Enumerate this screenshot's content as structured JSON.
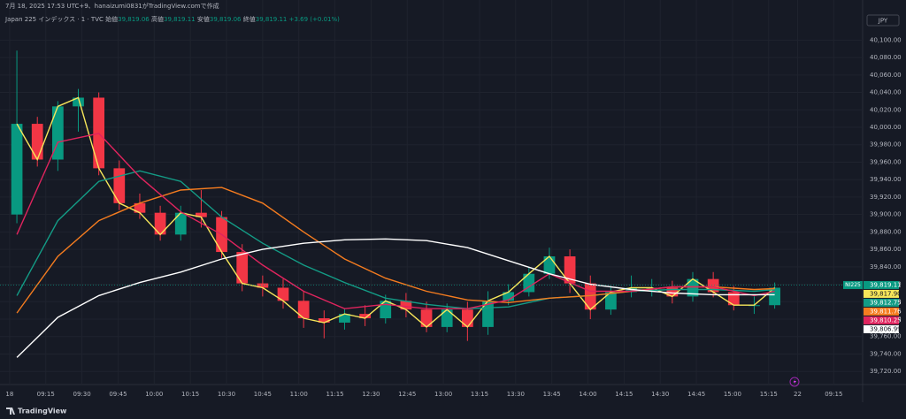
{
  "chart_data": {
    "type": "candlestick",
    "caption": "7月 18, 2025 17:53 UTC+9、hanaizumi0831がTradingView.comで作成",
    "symbol": "Japan 225 インデックス · 1 · TVC",
    "ohlc_legend": [
      {
        "label": "始値",
        "value": "39,819.06"
      },
      {
        "label": "高値",
        "value": "39,819.11"
      },
      {
        "label": "安値",
        "value": "39,819.06"
      },
      {
        "label": "終値",
        "value": "39,819.11"
      }
    ],
    "change": "+3.69 (+0.01%)",
    "currency": "JPY",
    "brand": "TradingView",
    "up_color": "#089981",
    "down_color": "#f23645",
    "grid": true,
    "last_price": {
      "name": "NI225",
      "value": 39819.11,
      "label": "39,819.11",
      "color": "#089981"
    },
    "xlim": [
      -4,
      354
    ],
    "xticks": [
      {
        "value": 0,
        "label": "18"
      },
      {
        "value": 15,
        "label": "09:15"
      },
      {
        "value": 30,
        "label": "09:30"
      },
      {
        "value": 45,
        "label": "09:45"
      },
      {
        "value": 60,
        "label": "10:00"
      },
      {
        "value": 75,
        "label": "10:15"
      },
      {
        "value": 90,
        "label": "10:30"
      },
      {
        "value": 105,
        "label": "10:45"
      },
      {
        "value": 120,
        "label": "11:00"
      },
      {
        "value": 135,
        "label": "11:15"
      },
      {
        "value": 150,
        "label": "12:30"
      },
      {
        "value": 165,
        "label": "12:45"
      },
      {
        "value": 180,
        "label": "13:00"
      },
      {
        "value": 195,
        "label": "13:15"
      },
      {
        "value": 210,
        "label": "13:30"
      },
      {
        "value": 225,
        "label": "13:45"
      },
      {
        "value": 240,
        "label": "14:00"
      },
      {
        "value": 255,
        "label": "14:15"
      },
      {
        "value": 270,
        "label": "14:30"
      },
      {
        "value": 285,
        "label": "14:45"
      },
      {
        "value": 300,
        "label": "15:00"
      },
      {
        "value": 315,
        "label": "15:15"
      },
      {
        "value": 327,
        "label": "22"
      },
      {
        "value": 342,
        "label": "09:15"
      }
    ],
    "ylim": [
      39705,
      40146
    ],
    "yticks": [
      {
        "value": 40100,
        "label": "40,100.00"
      },
      {
        "value": 40080,
        "label": "40,080.00"
      },
      {
        "value": 40060,
        "label": "40,060.00"
      },
      {
        "value": 40040,
        "label": "40,040.00"
      },
      {
        "value": 40020,
        "label": "40,020.00"
      },
      {
        "value": 40000,
        "label": "40,000.00"
      },
      {
        "value": 39980,
        "label": "39,980.00"
      },
      {
        "value": 39960,
        "label": "39,960.00"
      },
      {
        "value": 39940,
        "label": "39,940.00"
      },
      {
        "value": 39920,
        "label": "39,920.00"
      },
      {
        "value": 39900,
        "label": "39,900.00"
      },
      {
        "value": 39880,
        "label": "39,880.00"
      },
      {
        "value": 39860,
        "label": "39,860.00"
      },
      {
        "value": 39840,
        "label": "39,840.00"
      },
      {
        "value": 39820,
        "label": "39,820.00"
      },
      {
        "value": 39800,
        "label": "39,800.00"
      },
      {
        "value": 39780,
        "label": "39,780.00"
      },
      {
        "value": 39760,
        "label": "39,760.00"
      },
      {
        "value": 39740,
        "label": "39,740.00"
      },
      {
        "value": 39720,
        "label": "39,720.00"
      }
    ],
    "candles": {
      "x": [
        3,
        11.5,
        20,
        28.5,
        37,
        45.5,
        54,
        62.5,
        71,
        79.5,
        88,
        96.5,
        105,
        113.5,
        122,
        130.5,
        139,
        147.5,
        156,
        164.5,
        173,
        181.5,
        190,
        198.5,
        207,
        215.5,
        224,
        232.5,
        241,
        249.5,
        258,
        266.5,
        275,
        283.5,
        292,
        300.5,
        309,
        317.5
      ],
      "open": [
        39900,
        40004,
        39963,
        40024,
        40034,
        39953,
        39913,
        39902,
        39877,
        39902,
        39897,
        39857,
        39821,
        39816,
        39801,
        39781,
        39776,
        39786,
        39781,
        39801,
        39791,
        39771,
        39791,
        39771,
        39801,
        39811,
        39832,
        39852,
        39821,
        39791,
        39811,
        39816,
        39816,
        39806,
        39826,
        39811,
        39796,
        39796
      ],
      "high": [
        40088,
        40012,
        40030,
        40044,
        40040,
        39962,
        39924,
        39910,
        39910,
        39928,
        39904,
        39866,
        39830,
        39826,
        39812,
        39790,
        39792,
        39796,
        39808,
        39810,
        39800,
        39798,
        39800,
        39812,
        39820,
        39840,
        39862,
        39860,
        39830,
        39818,
        39830,
        39826,
        39824,
        39834,
        39834,
        39818,
        39806,
        39822
      ],
      "low": [
        39890,
        39955,
        39950,
        39995,
        39945,
        39905,
        39895,
        39870,
        39870,
        39885,
        39850,
        39812,
        39806,
        39792,
        39770,
        39758,
        39768,
        39772,
        39775,
        39782,
        39765,
        39765,
        39755,
        39762,
        39796,
        39806,
        39826,
        39810,
        39780,
        39785,
        39805,
        39806,
        39798,
        39800,
        39805,
        39790,
        39786,
        39792
      ],
      "close": [
        40004,
        39963,
        40024,
        40034,
        39953,
        39913,
        39902,
        39877,
        39902,
        39897,
        39857,
        39821,
        39816,
        39801,
        39781,
        39776,
        39786,
        39781,
        39801,
        39791,
        39771,
        39791,
        39771,
        39801,
        39811,
        39832,
        39852,
        39821,
        39791,
        39811,
        39816,
        39816,
        39806,
        39826,
        39811,
        39796,
        39796,
        39816
      ]
    },
    "series": [
      {
        "color": "#f7e65a",
        "last_label": "39,817.90",
        "x": [
          3,
          11.5,
          20,
          28.5,
          37,
          45.5,
          54,
          62.5,
          71,
          79.5,
          88,
          96.5,
          105,
          113.5,
          122,
          130.5,
          139,
          147.5,
          156,
          164.5,
          173,
          181.5,
          190,
          198.5,
          207,
          215.5,
          224,
          232.5,
          241,
          249.5,
          258,
          266.5,
          275,
          283.5,
          292,
          300.5,
          309,
          317.5
        ],
        "values": [
          40004,
          39963,
          40024,
          40034,
          39953,
          39913,
          39902,
          39877,
          39902,
          39897,
          39857,
          39821,
          39816,
          39801,
          39781,
          39776,
          39786,
          39781,
          39801,
          39791,
          39771,
          39791,
          39771,
          39801,
          39811,
          39832,
          39852,
          39821,
          39791,
          39811,
          39816,
          39816,
          39806,
          39826,
          39811,
          39796,
          39796,
          39816
        ]
      },
      {
        "color": "#139c86",
        "last_label": "39,812.75",
        "x": [
          3,
          20,
          37,
          54,
          71,
          88,
          105,
          122,
          139,
          156,
          173,
          190,
          207,
          224,
          241,
          258,
          275,
          292,
          309,
          317.5
        ],
        "values": [
          39807,
          39893,
          39938,
          39950,
          39938,
          39897,
          39867,
          39842,
          39822,
          39804,
          39797,
          39792,
          39794,
          39804,
          39807,
          39812,
          39814,
          39814,
          39812,
          39814
        ]
      },
      {
        "color": "#f57c1f",
        "last_label": "39,811.76",
        "x": [
          3,
          20,
          37,
          54,
          71,
          88,
          105,
          122,
          139,
          156,
          173,
          190,
          207,
          224,
          241,
          258,
          275,
          292,
          309,
          317.5
        ],
        "values": [
          39787,
          39852,
          39893,
          39913,
          39928,
          39931,
          39913,
          39880,
          39849,
          39827,
          39812,
          39802,
          39799,
          39804,
          39807,
          39812,
          39817,
          39817,
          39814,
          39815
        ]
      },
      {
        "color": "#e0245e",
        "last_label": "39,810.25",
        "x": [
          3,
          20,
          37,
          54,
          71,
          88,
          105,
          122,
          139,
          156,
          173,
          190,
          207,
          224,
          241,
          258,
          275,
          292,
          309,
          317.5
        ],
        "values": [
          39877,
          39983,
          39993,
          39943,
          39903,
          39877,
          39842,
          39812,
          39792,
          39797,
          39792,
          39792,
          39802,
          39832,
          39812,
          39812,
          39817,
          39817,
          39807,
          39812
        ]
      },
      {
        "color": "#ffffff",
        "last_label": "39,806.99",
        "x": [
          3,
          20,
          37,
          54,
          71,
          88,
          105,
          122,
          139,
          156,
          173,
          190,
          207,
          224,
          241,
          258,
          275,
          292,
          309,
          317.5
        ],
        "values": [
          39736,
          39782,
          39807,
          39822,
          39834,
          39849,
          39860,
          39867,
          39871,
          39872,
          39870,
          39862,
          39847,
          39832,
          39820,
          39814,
          39810,
          39808,
          39808,
          39808
        ]
      }
    ]
  }
}
